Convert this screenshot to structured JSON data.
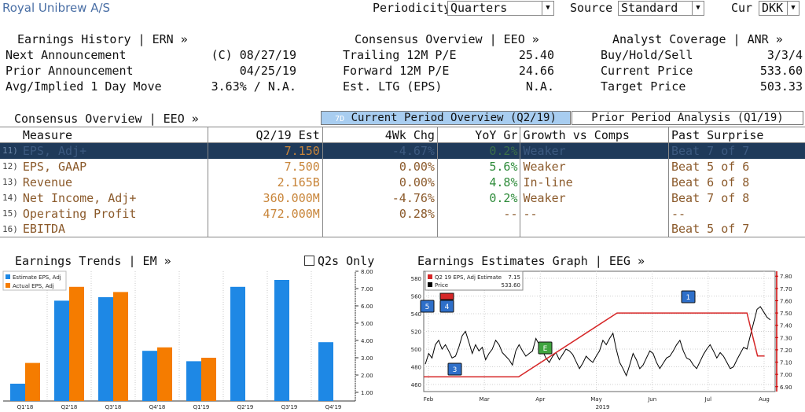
{
  "header": {
    "title": "Royal Unibrew A/S",
    "periodicity_label": "Periodicity",
    "periodicity_value": "Quarters",
    "source_label": "Source",
    "source_value": "Standard",
    "cur_label": "Cur",
    "cur_value": "DKK"
  },
  "earnings_history": {
    "heading": "Earnings History | ERN »",
    "rows": [
      {
        "label": "Next Announcement",
        "value": "(C) 08/27/19"
      },
      {
        "label": "Prior Announcement",
        "value": "04/25/19"
      },
      {
        "label": "Avg/Implied 1 Day Move",
        "value": "3.63% / N.A."
      }
    ]
  },
  "consensus_overview_top": {
    "heading": "Consensus Overview | EEO »",
    "rows": [
      {
        "label": "Trailing 12M P/E",
        "value": "25.40"
      },
      {
        "label": "Forward 12M P/E",
        "value": "24.66"
      },
      {
        "label": "Est. LTG (EPS)",
        "value": "N.A."
      }
    ]
  },
  "analyst_coverage": {
    "heading": "Analyst Coverage | ANR »",
    "rows": [
      {
        "label": "Buy/Hold/Sell",
        "value": "3/3/4"
      },
      {
        "label": "Current Price",
        "value": "533.60"
      },
      {
        "label": "Target Price",
        "value": "503.33"
      }
    ]
  },
  "consensus_section": {
    "heading": "Consensus Overview | EEO »",
    "tab_current": "Current Period Overview (Q2/19)",
    "tab_current_prefix": "7D",
    "tab_prior": "Prior Period Analysis (Q1/19)"
  },
  "table": {
    "headers": [
      "Measure",
      "Q2/19 Est",
      "4Wk Chg",
      "YoY Gr",
      "Growth vs Comps",
      "Past Surprise"
    ],
    "rows": [
      {
        "num": "11)",
        "measure": "EPS, Adj+",
        "est": "7.150",
        "chg": "-4.67%",
        "yoy": "0.2%",
        "comps": "Weaker",
        "surprise": "Beat 7 of 7"
      },
      {
        "num": "12)",
        "measure": "EPS, GAAP",
        "est": "7.500",
        "chg": "0.00%",
        "yoy": "5.6%",
        "comps": "Weaker",
        "surprise": "Beat 5 of 6"
      },
      {
        "num": "13)",
        "measure": "Revenue",
        "est": "2.165B",
        "chg": "0.00%",
        "yoy": "4.8%",
        "comps": "In-line",
        "surprise": "Beat 6 of 8"
      },
      {
        "num": "14)",
        "measure": "Net Income, Adj+",
        "est": "360.000M",
        "chg": "-4.76%",
        "yoy": "0.2%",
        "comps": "Weaker",
        "surprise": "Beat 7 of 8"
      },
      {
        "num": "15)",
        "measure": "Operating Profit",
        "est": "472.000M",
        "chg": "0.28%",
        "yoy": "--",
        "comps": "--",
        "surprise": "--"
      },
      {
        "num": "16)",
        "measure": "EBITDA",
        "est": "",
        "chg": "",
        "yoy": "",
        "comps": "",
        "surprise": "Beat 5 of 7"
      }
    ]
  },
  "earnings_trends": {
    "heading": "Earnings Trends | EM »",
    "q2s_only": "Q2s Only"
  },
  "estimates_graph": {
    "heading": "Earnings Estimates Graph | EEG »"
  },
  "chart_data": [
    {
      "type": "bar",
      "categories": [
        "Q1'18",
        "Q2'18",
        "Q3'18",
        "Q4'18",
        "Q1'19",
        "Q2'19",
        "Q3'19",
        "Q4'19"
      ],
      "series": [
        {
          "name": "Estimate EPS, Adj",
          "values": [
            1.5,
            6.3,
            6.5,
            3.4,
            2.8,
            7.1,
            7.5,
            3.9
          ],
          "color": "#1e88e5"
        },
        {
          "name": "Actual EPS, Adj",
          "values": [
            2.7,
            7.1,
            6.8,
            3.6,
            3.0,
            null,
            null,
            null
          ],
          "color": "#f57c00"
        }
      ],
      "yticks": [
        "8.00",
        "7.00",
        "6.00",
        "5.00",
        "4.00",
        "3.00",
        "2.00",
        "1.00"
      ],
      "ylim": [
        0.5,
        8
      ],
      "legend": "top-left"
    },
    {
      "type": "line",
      "xlabel": "2019",
      "x_ticks": [
        "Feb",
        "Mar",
        "Apr",
        "May",
        "Jun",
        "Jul",
        "Aug"
      ],
      "left_ticks": [
        "580",
        "560",
        "540",
        "520",
        "500",
        "480",
        "460"
      ],
      "left_ylim": [
        452,
        588
      ],
      "right_ticks": [
        "7.80",
        "7.70",
        "7.60",
        "7.50",
        "7.40",
        "7.30",
        "7.20",
        "7.10",
        "7.00",
        "6.90"
      ],
      "right_ylim": [
        6.86,
        7.84
      ],
      "legend": {
        "items": [
          {
            "name": "Q2 19 EPS, Adj Estimate",
            "value": "7.15",
            "color": "#d62728"
          },
          {
            "name": "Price",
            "value": "533.60",
            "color": "#000000"
          }
        ]
      },
      "price": [
        483,
        495,
        490,
        505,
        510,
        500,
        505,
        498,
        490,
        492,
        502,
        515,
        520,
        508,
        495,
        505,
        498,
        502,
        488,
        495,
        500,
        510,
        505,
        496,
        492,
        488,
        482,
        498,
        505,
        498,
        492,
        495,
        498,
        512,
        505,
        498,
        490,
        485,
        492,
        496,
        488,
        494,
        500,
        498,
        494,
        486,
        478,
        484,
        492,
        488,
        485,
        492,
        498,
        510,
        505,
        512,
        518,
        500,
        485,
        478,
        470,
        482,
        495,
        488,
        478,
        482,
        490,
        498,
        495,
        485,
        478,
        484,
        490,
        492,
        498,
        505,
        510,
        498,
        490,
        488,
        482,
        478,
        486,
        494,
        500,
        505,
        498,
        490,
        496,
        492,
        485,
        478,
        480,
        488,
        495,
        502,
        500,
        515,
        530,
        545,
        548,
        542,
        536,
        533
      ],
      "estimate_steps": [
        [
          0,
          6.98
        ],
        [
          0.27,
          6.98
        ],
        [
          0.55,
          7.5
        ],
        [
          0.92,
          7.5
        ],
        [
          0.95,
          7.15
        ],
        [
          0.97,
          7.15
        ]
      ],
      "markers": [
        {
          "label": "5",
          "color": "#2e6fc9"
        },
        {
          "label": "4",
          "color": "#2e6fc9"
        },
        {
          "label": "3",
          "color": "#2e6fc9"
        },
        {
          "label": "E",
          "color": "#3fa43f"
        },
        {
          "label": "1",
          "color": "#2e6fc9"
        }
      ]
    }
  ]
}
